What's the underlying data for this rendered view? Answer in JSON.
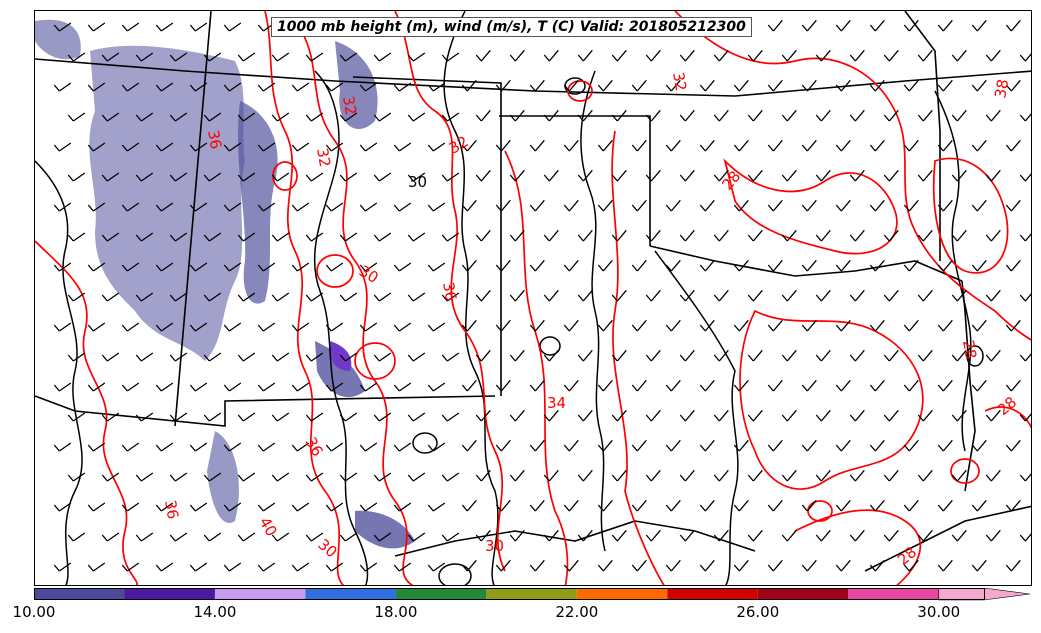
{
  "title": "1000 mb height (m), wind (m/s), T (C) Valid: 201805212300",
  "contour_labels": [
    "32",
    "32",
    "32",
    "36",
    "30",
    "30",
    "36",
    "34",
    "28",
    "32",
    "28",
    "28",
    "28",
    "36",
    "30",
    "38",
    "30",
    "40",
    "36"
  ],
  "colorbar": {
    "min": 10.0,
    "max": 31.0,
    "tick_labels": [
      "10.00",
      "14.00",
      "18.00",
      "22.00",
      "26.00",
      "30.00"
    ],
    "tick_values": [
      10,
      14,
      18,
      22,
      26,
      30
    ],
    "bins": [
      {
        "from": 10,
        "to": 12,
        "color": "#4b4b9a"
      },
      {
        "from": 12,
        "to": 14,
        "color": "#4a1aa0"
      },
      {
        "from": 14,
        "to": 16,
        "color": "#c89bf0"
      },
      {
        "from": 16,
        "to": 18,
        "color": "#2f6fe0"
      },
      {
        "from": 18,
        "to": 20,
        "color": "#218a3a"
      },
      {
        "from": 20,
        "to": 22,
        "color": "#8f9e16"
      },
      {
        "from": 22,
        "to": 24,
        "color": "#ff6a00"
      },
      {
        "from": 24,
        "to": 26,
        "color": "#d10000"
      },
      {
        "from": 26,
        "to": 28,
        "color": "#a10018"
      },
      {
        "from": 28,
        "to": 30,
        "color": "#ea45a0"
      },
      {
        "from": 30,
        "to": 31,
        "color": "#f4a8d0"
      }
    ]
  },
  "colors": {
    "temperature_contour": "#ff0000",
    "height_contour": "#000000",
    "boundaries": "#000000",
    "wind_shading": "#4b4b9a"
  }
}
